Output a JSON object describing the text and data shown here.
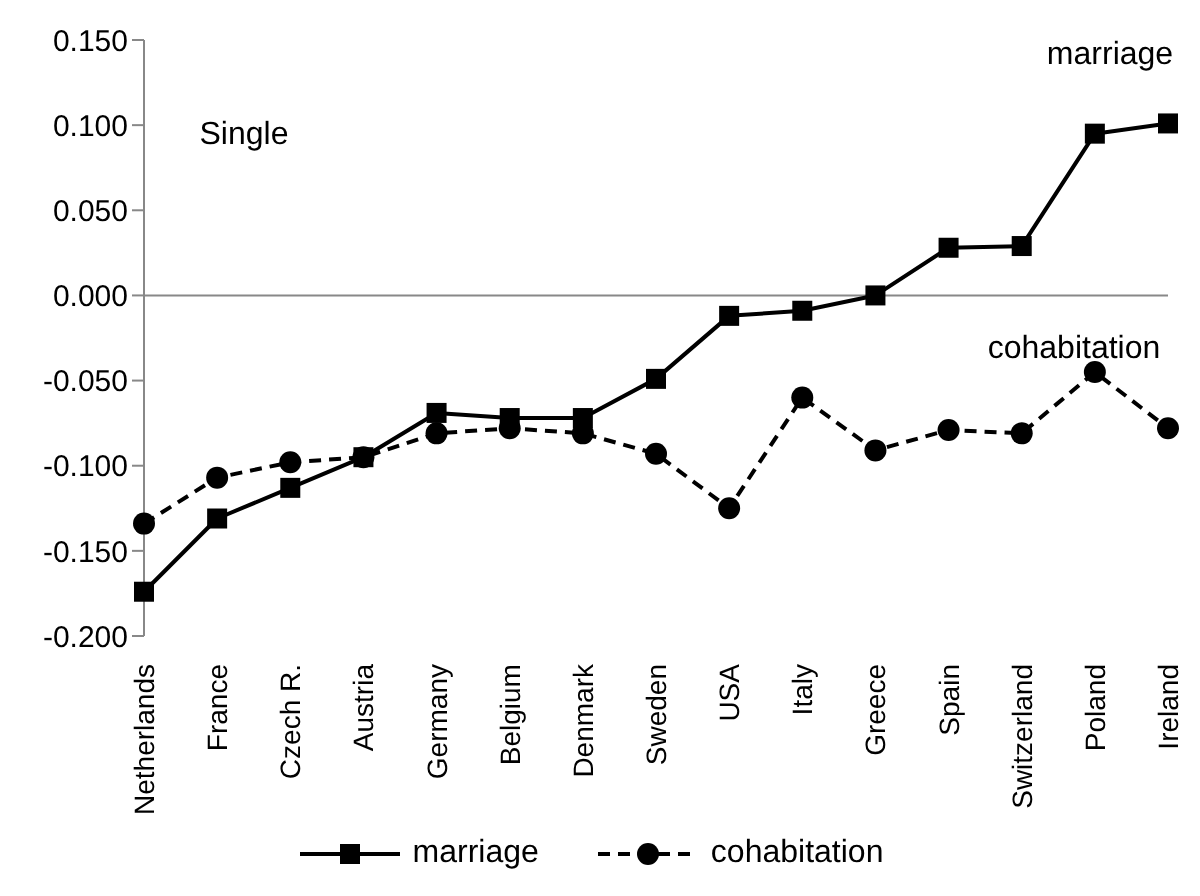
{
  "chart_data": {
    "type": "line",
    "categories": [
      "Netherlands",
      "France",
      "Czech R.",
      "Austria",
      "Germany",
      "Belgium",
      "Denmark",
      "Sweden",
      "USA",
      "Italy",
      "Greece",
      "Spain",
      "Switzerland",
      "Poland",
      "Ireland"
    ],
    "series": [
      {
        "name": "marriage",
        "color": "#000000",
        "marker": "square",
        "line_style": "solid",
        "values": [
          -0.174,
          -0.131,
          -0.113,
          -0.095,
          -0.069,
          -0.072,
          -0.072,
          -0.049,
          -0.012,
          -0.009,
          0.0,
          0.028,
          0.029,
          0.095,
          0.101
        ]
      },
      {
        "name": "cohabitation",
        "color": "#000000",
        "marker": "circle",
        "line_style": "dashed",
        "values": [
          -0.134,
          -0.107,
          -0.098,
          -0.095,
          -0.081,
          -0.078,
          -0.081,
          -0.093,
          -0.125,
          -0.06,
          -0.091,
          -0.079,
          -0.081,
          -0.045,
          -0.078
        ]
      }
    ],
    "ylim": [
      -0.2,
      0.15
    ],
    "yticks": [
      {
        "value": -0.2,
        "label": "-0.200"
      },
      {
        "value": -0.15,
        "label": "-0.150"
      },
      {
        "value": -0.1,
        "label": "-0.100"
      },
      {
        "value": -0.05,
        "label": "-0.050"
      },
      {
        "value": 0,
        "label": "0.000"
      },
      {
        "value": 0.05,
        "label": "0.050"
      },
      {
        "value": 0.1,
        "label": "0.100"
      },
      {
        "value": 0.15,
        "label": "0.150"
      }
    ],
    "ref_lines": [
      {
        "axis": "y",
        "value": 0,
        "color": "#888888"
      }
    ],
    "annotations": [
      "Single",
      "marriage",
      "cohabitation"
    ],
    "grid": false,
    "legend": "bottom"
  }
}
